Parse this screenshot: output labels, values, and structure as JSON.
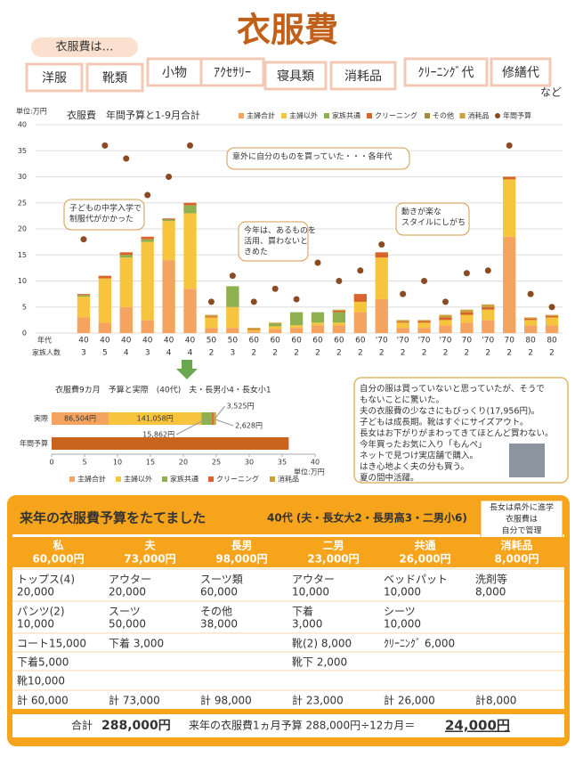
{
  "header": {
    "title": "衣服費",
    "lead": "衣服費は…",
    "tags": [
      "洋服",
      "靴類",
      "小物",
      "ｱｸｾｻﾘｰ",
      "寝具類",
      "消耗品",
      "ｸﾘｰﾆﾝｸﾞ代",
      "修繕代"
    ],
    "tail": "など"
  },
  "chart_data": [
    {
      "type": "bar",
      "title": "衣服費　年間予算と1-9月合計",
      "y_label": "単位:万円",
      "x_row_labels": [
        "年代",
        "家族人数"
      ],
      "categories": [
        "40",
        "40",
        "40",
        "40",
        "40",
        "40",
        "50",
        "50",
        "60",
        "60",
        "60",
        "60",
        "60",
        "60",
        "'70",
        "'70",
        "'70",
        "'70",
        "70",
        "'70",
        "70",
        "80",
        "80"
      ],
      "family_sizes": [
        "3",
        "5",
        "4",
        "3",
        "4",
        "4",
        "2",
        "3",
        "2",
        "2",
        "2",
        "2",
        "2",
        "2",
        "2",
        "2",
        "2",
        "2",
        "2",
        "2",
        "2",
        "2",
        "2"
      ],
      "ylim": [
        0,
        40
      ],
      "yticks": [
        0,
        5,
        10,
        15,
        20,
        25,
        30,
        35,
        40
      ],
      "grid": true,
      "series": [
        {
          "name": "主婦合計",
          "color": "#f5a45f",
          "values": [
            3,
            2,
            5,
            2.5,
            14,
            8.5,
            1,
            1,
            0.3,
            0.8,
            1,
            1.5,
            1.5,
            4,
            6.5,
            1,
            1,
            1.5,
            2,
            2.5,
            18.5,
            1.5,
            1.5
          ]
        },
        {
          "name": "主婦以外",
          "color": "#f7c53d",
          "values": [
            4,
            8.5,
            9.5,
            15,
            7.5,
            14.5,
            2,
            4,
            0.3,
            0.5,
            0.5,
            0.5,
            0.5,
            2,
            8,
            1,
            1,
            1,
            1.5,
            2,
            11,
            1,
            1.5
          ]
        },
        {
          "name": "家族共通",
          "color": "#8fb04f",
          "values": [
            0.3,
            0,
            0.5,
            0.5,
            0.3,
            1.5,
            0,
            4,
            0,
            0.5,
            2.5,
            2,
            2,
            0,
            0,
            0,
            0,
            0,
            0,
            0,
            0,
            0,
            0
          ]
        },
        {
          "name": "クリーニング",
          "color": "#d8642a",
          "values": [
            0.2,
            0.5,
            0.5,
            0.5,
            0.2,
            0.5,
            0.2,
            0,
            0.2,
            0,
            0,
            0,
            0.3,
            1.5,
            1,
            0.2,
            0.3,
            0.5,
            0.5,
            0.5,
            0.5,
            0.3,
            0.3
          ]
        },
        {
          "name": "その他",
          "color": "#a88a3a",
          "values": [
            0,
            0,
            0,
            0,
            0,
            0,
            0,
            0,
            0,
            0,
            0,
            0,
            0,
            0,
            0,
            0,
            0,
            0,
            0,
            0,
            0,
            0,
            0
          ]
        },
        {
          "name": "消耗品",
          "color": "#c9a23a",
          "values": [
            0,
            0,
            0,
            0,
            0,
            0,
            0.3,
            0,
            0.2,
            0.2,
            0,
            0,
            0.2,
            0,
            0,
            0.3,
            0.2,
            0.5,
            0.5,
            0.5,
            0,
            0.2,
            0.2
          ]
        },
        {
          "name": "年間予算",
          "color": "#8b4a1f",
          "style": "dot",
          "values": [
            18,
            36,
            33.5,
            26.5,
            30,
            36,
            6,
            11,
            6,
            8.5,
            6.5,
            13.5,
            10,
            12,
            17,
            7.5,
            10,
            6,
            11.5,
            12,
            36,
            7.5,
            5
          ]
        }
      ],
      "annotations": [
        [
          "意外に自分のものを買っていた・・・各年代"
        ],
        [
          "子どもの中学入学で",
          "制服代がかかった"
        ],
        [
          "今年は、あるものを",
          "活用、買わないと",
          "きめた"
        ],
        [
          "動きが楽な",
          "スタイルにしがち"
        ]
      ]
    },
    {
      "type": "barh",
      "title": "衣服費9カ月　予算と実際　(40代)　夫・長男小4・長女小1",
      "x_label": "単位:万円",
      "categories": [
        "実際",
        "年間予算"
      ],
      "xlim": [
        0,
        40
      ],
      "xticks": [
        0,
        5,
        10,
        15,
        20,
        25,
        30,
        35,
        40
      ],
      "series": [
        {
          "name": "主婦合計",
          "color": "#f5a45f",
          "values": [
            8.6504,
            null
          ],
          "value_labels": [
            "86,504円",
            null
          ]
        },
        {
          "name": "主婦以外",
          "color": "#f7c53d",
          "values": [
            14.1058,
            null
          ],
          "value_labels": [
            "141,058円",
            null
          ]
        },
        {
          "name": "家族共通",
          "color": "#8fb04f",
          "values": [
            1.5862,
            null
          ],
          "value_labels": [
            "15,862円",
            null
          ]
        },
        {
          "name": "クリーニング",
          "color": "#d8642a",
          "values": [
            0.2628,
            null
          ],
          "value_labels": [
            "2,628円",
            null
          ]
        },
        {
          "name": "消耗品",
          "color": "#c9a23a",
          "values": [
            0.3525,
            null
          ],
          "value_labels": [
            "3,525円",
            null
          ]
        }
      ],
      "budget_value": 36,
      "budget_color": "#c8641e"
    }
  ],
  "note": [
    "自分の服は買っていないと思っていたが、そうで",
    "もないことに驚いた。",
    "夫の衣服費の少なさにもびっくり(17,956円)。",
    "子どもは成長期。靴はすぐにサイズアウト。",
    "長女はお下がりがまわってきてほとんど買わない。",
    "今年買ったお気に入り「もんぺ」",
    "ネットで見つけ実店舗で購入。",
    "はき心地よく夫の分も買う。",
    "夏の間中活躍。"
  ],
  "plan": {
    "title": "来年の衣服費予算をたてました",
    "family": "40代 (夫・長女大2・長男高3・二男小6)",
    "side_note": [
      "長女は県外に進学",
      "衣服費は",
      "自分で管理"
    ],
    "columns": [
      {
        "name": "私",
        "amount": "60,000円"
      },
      {
        "name": "夫",
        "amount": "73,000円"
      },
      {
        "name": "長男",
        "amount": "98,000円"
      },
      {
        "name": "二男",
        "amount": "23,000円"
      },
      {
        "name": "共通",
        "amount": "26,000円"
      },
      {
        "name": "消耗品",
        "amount": "8,000円"
      }
    ],
    "rows": [
      [
        [
          "トップス(4)",
          "20,000"
        ],
        [
          "アウター",
          "20,000"
        ],
        [
          "スーツ類",
          "60,000"
        ],
        [
          "アウター",
          "10,000"
        ],
        [
          "ベッドパット",
          "10,000"
        ],
        [
          "洗剤等",
          "8,000"
        ]
      ],
      [
        [
          "パンツ(2)",
          "10,000"
        ],
        [
          "スーツ",
          "50,000"
        ],
        [
          "その他",
          "38,000"
        ],
        [
          "下着",
          "3,000"
        ],
        [
          "シーツ",
          "10,000"
        ],
        null
      ],
      [
        [
          "コート15,000"
        ],
        [
          "下着  3,000"
        ],
        null,
        [
          "靴(2)  8,000"
        ],
        [
          "ｸﾘｰﾆﾝｸﾞ 6,000"
        ],
        null
      ],
      [
        [
          "下着5,000"
        ],
        null,
        null,
        [
          "靴下  2,000"
        ],
        null,
        null
      ],
      [
        [
          "靴10,000"
        ],
        null,
        null,
        null,
        null,
        null
      ],
      [
        [
          "計  60,000"
        ],
        [
          "計  73,000"
        ],
        [
          "計  98,000"
        ],
        [
          "計  23,000"
        ],
        [
          "計  26,000"
        ],
        [
          "計8,000"
        ]
      ]
    ],
    "total_label": "合計",
    "total": "288,000円",
    "monthly_label": "来年の衣服費1ヵ月予算  288,000円÷12カ月＝",
    "monthly": "24,000円"
  }
}
